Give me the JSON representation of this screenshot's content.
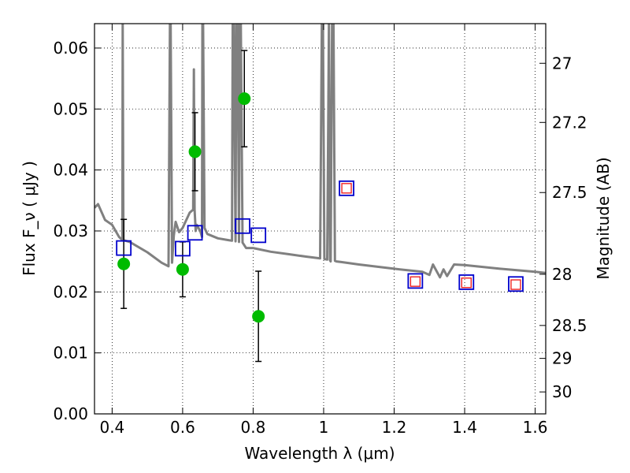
{
  "chart_data": {
    "type": "scatter",
    "xlabel": "Wavelength  λ (μm)",
    "ylabel": "Flux  F_ν  ( μJy )",
    "ylabel_right": "Magnitude (AB)",
    "xlim": [
      0.35,
      1.63
    ],
    "ylim": [
      0.0,
      0.064
    ],
    "grid": true,
    "x_ticks": [
      0.4,
      0.6,
      0.8,
      1.0,
      1.2,
      1.4,
      1.6
    ],
    "x_tick_labels": [
      "0.4",
      "0.6",
      "0.8",
      "1",
      "1.2",
      "1.4",
      "1.6"
    ],
    "y_ticks": [
      0.0,
      0.01,
      0.02,
      0.03,
      0.04,
      0.05,
      0.06
    ],
    "y_tick_labels": [
      "0.00",
      "0.01",
      "0.02",
      "0.03",
      "0.04",
      "0.05",
      "0.06"
    ],
    "right_ticks": [
      {
        "label": "27",
        "flux": 0.0575
      },
      {
        "label": "27.2",
        "flux": 0.0478
      },
      {
        "label": "27.5",
        "flux": 0.0363
      },
      {
        "label": "28",
        "flux": 0.0229
      },
      {
        "label": "28.5",
        "flux": 0.0145
      },
      {
        "label": "29",
        "flux": 0.0091
      },
      {
        "label": "30",
        "flux": 0.0036
      }
    ],
    "series": [
      {
        "kind": "line",
        "color": "#808080",
        "x": [
          0.35,
          0.36,
          0.38,
          0.4,
          0.42,
          0.429,
          0.43,
          0.432,
          0.45,
          0.5,
          0.54,
          0.56,
          0.564,
          0.566,
          0.57,
          0.575,
          0.58,
          0.59,
          0.6,
          0.62,
          0.63,
          0.632,
          0.634,
          0.637,
          0.64,
          0.65,
          0.655,
          0.656,
          0.658,
          0.662,
          0.67,
          0.7,
          0.73,
          0.74,
          0.742,
          0.745,
          0.75,
          0.752,
          0.756,
          0.76,
          0.762,
          0.765,
          0.77,
          0.78,
          0.8,
          0.85,
          0.9,
          0.95,
          0.99,
          0.995,
          0.998,
          1.002,
          1.01,
          1.015,
          1.018,
          1.02,
          1.024,
          1.028,
          1.032,
          1.036,
          1.05,
          1.1,
          1.2,
          1.28,
          1.3,
          1.31,
          1.33,
          1.34,
          1.35,
          1.37,
          1.4,
          1.5,
          1.6,
          1.63
        ],
        "y": [
          0.0338,
          0.0344,
          0.0318,
          0.031,
          0.029,
          0.0285,
          0.064,
          0.0285,
          0.0282,
          0.0265,
          0.0248,
          0.0242,
          0.064,
          0.064,
          0.0248,
          0.0292,
          0.0315,
          0.0298,
          0.0305,
          0.033,
          0.0335,
          0.0565,
          0.0335,
          0.03,
          0.031,
          0.03,
          0.029,
          0.064,
          0.064,
          0.0305,
          0.0295,
          0.0288,
          0.0285,
          0.0284,
          0.064,
          0.064,
          0.0283,
          0.064,
          0.064,
          0.0282,
          0.064,
          0.064,
          0.0281,
          0.0272,
          0.0272,
          0.0266,
          0.0262,
          0.0258,
          0.0255,
          0.064,
          0.064,
          0.0254,
          0.0253,
          0.064,
          0.0252,
          0.025,
          0.064,
          0.064,
          0.0251,
          0.025,
          0.0249,
          0.0245,
          0.0238,
          0.0233,
          0.0228,
          0.0245,
          0.0224,
          0.0237,
          0.0226,
          0.0245,
          0.0244,
          0.0238,
          0.0233,
          0.0231
        ]
      },
      {
        "kind": "points",
        "marker": "circle",
        "color": "#00bb00",
        "x": [
          0.433,
          0.6,
          0.635,
          0.775,
          0.815
        ],
        "y": [
          0.0246,
          0.0237,
          0.043,
          0.0517,
          0.016
        ],
        "err": [
          0.0073,
          0.0045,
          0.0064,
          0.0079,
          0.0074
        ]
      },
      {
        "kind": "points",
        "marker": "square",
        "color": "#0000cc",
        "x": [
          0.433,
          0.6,
          0.635,
          0.77,
          0.815,
          1.065,
          1.26,
          1.405,
          1.545
        ],
        "y": [
          0.0272,
          0.0271,
          0.0297,
          0.0308,
          0.0293,
          0.037,
          0.0218,
          0.0216,
          0.0213
        ]
      },
      {
        "kind": "points",
        "marker": "square-small",
        "color": "#ee2222",
        "x": [
          1.065,
          1.26,
          1.405,
          1.545
        ],
        "y": [
          0.037,
          0.0217,
          0.0215,
          0.0212
        ]
      }
    ]
  }
}
